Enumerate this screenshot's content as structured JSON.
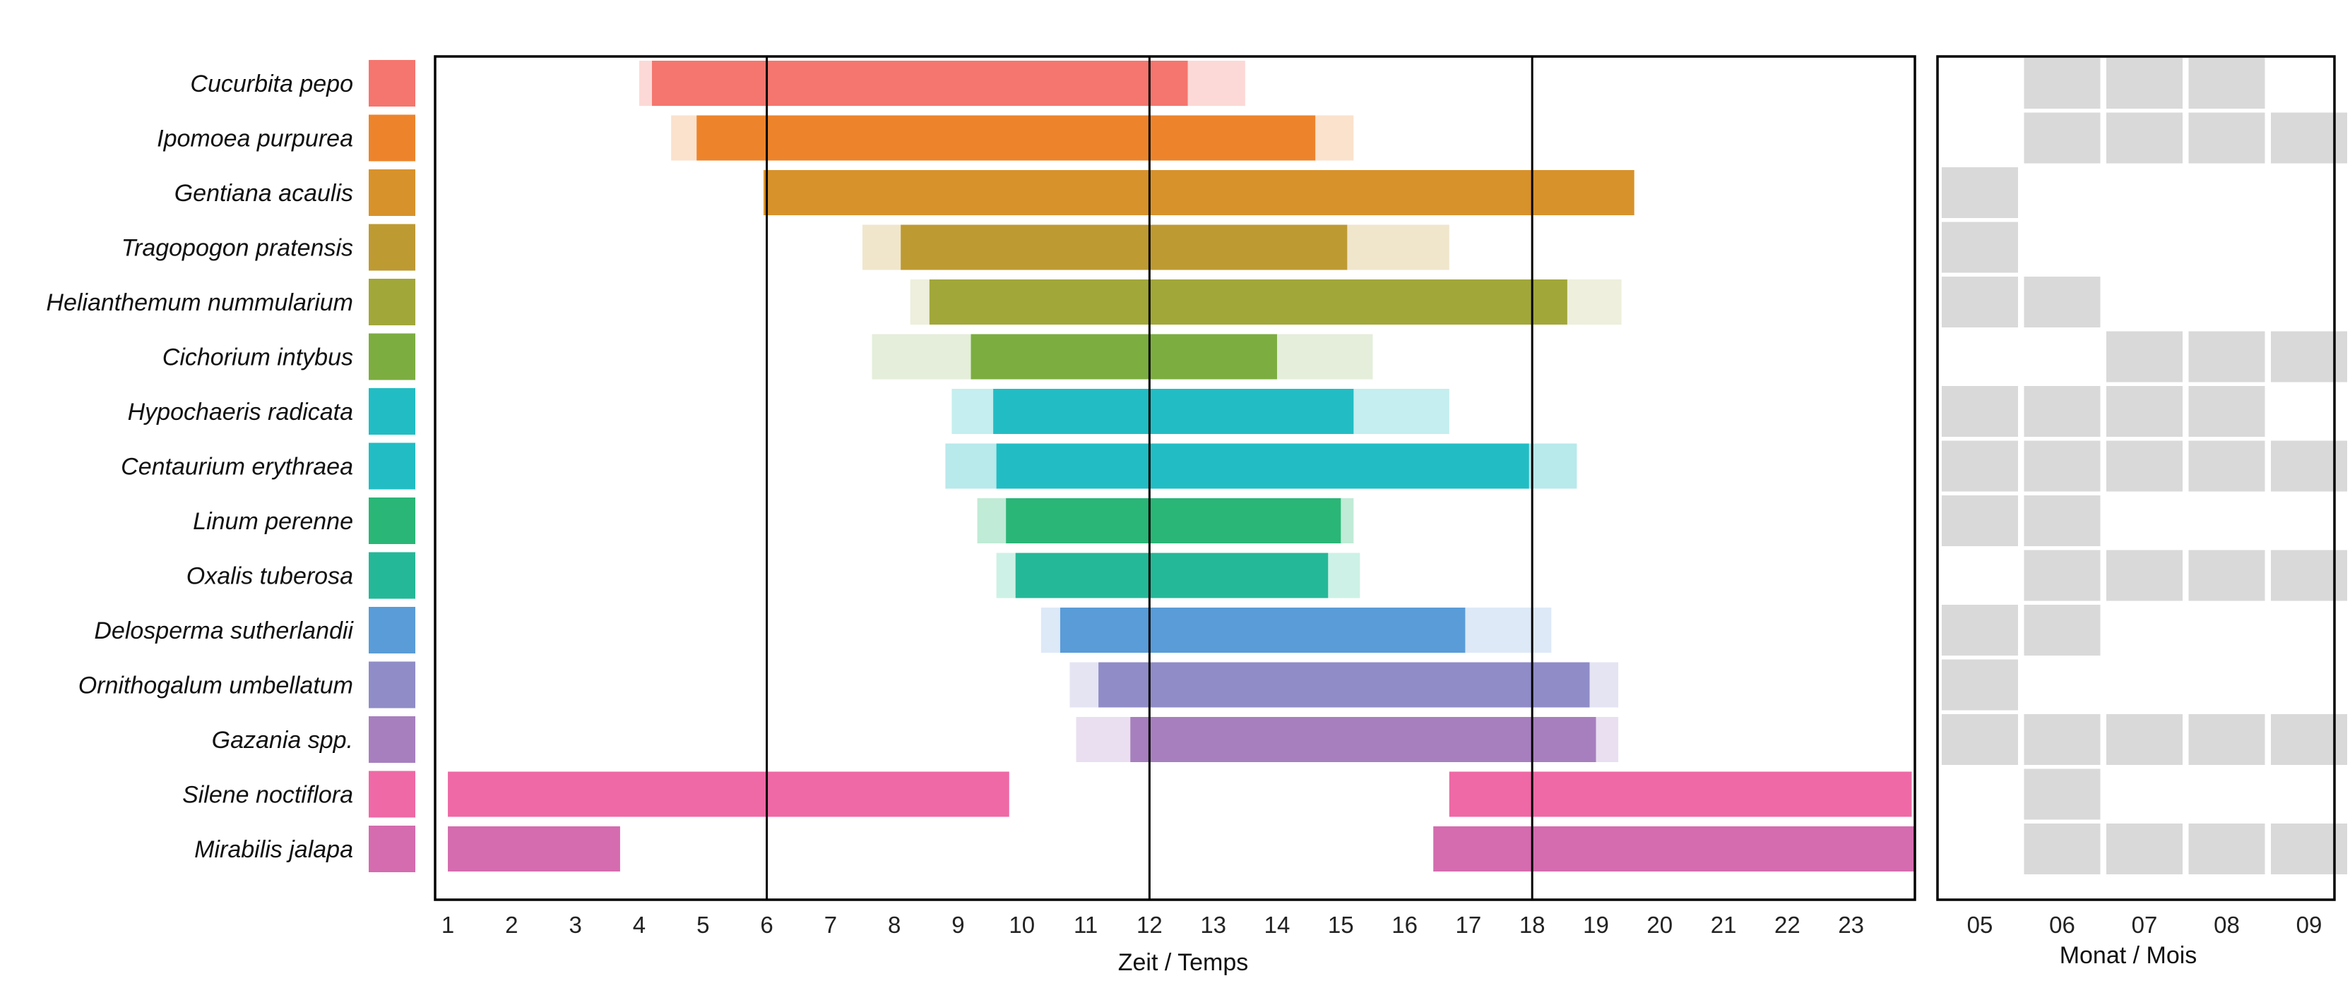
{
  "chart_data": {
    "type": "gantt",
    "xlabel": "Zeit / Temps",
    "xlim": [
      0.8,
      24
    ],
    "xticks": [
      1,
      2,
      3,
      4,
      5,
      6,
      7,
      8,
      9,
      10,
      11,
      12,
      13,
      14,
      15,
      16,
      17,
      18,
      19,
      20,
      21,
      22,
      23
    ],
    "reference_lines": [
      6,
      12,
      18
    ],
    "month_panel": {
      "xlabel": "Monat / Mois",
      "months": [
        "05",
        "06",
        "07",
        "08",
        "09"
      ]
    },
    "species": [
      {
        "name": "Cucurbita pepo",
        "color": "#F4766E",
        "light": "#FCD9D6",
        "bars": [
          {
            "light": [
              4.0,
              13.5
            ],
            "core": [
              4.2,
              12.6
            ]
          }
        ],
        "months": [
          0,
          1,
          1,
          1,
          0
        ]
      },
      {
        "name": "Ipomoea purpurea",
        "color": "#ED842C",
        "light": "#FBE2CC",
        "bars": [
          {
            "light": [
              4.5,
              15.2
            ],
            "core": [
              4.9,
              14.6
            ]
          }
        ],
        "months": [
          0,
          1,
          1,
          1,
          1
        ]
      },
      {
        "name": "Gentiana acaulis",
        "color": "#D8922B",
        "light": "#F5E2C4",
        "bars": [
          {
            "light": [
              5.95,
              19.6
            ],
            "core": [
              5.95,
              19.6
            ]
          }
        ],
        "months": [
          1,
          0,
          0,
          0,
          0
        ]
      },
      {
        "name": "Tragopogon pratensis",
        "color": "#BE9A33",
        "light": "#F0E6CC",
        "bars": [
          {
            "light": [
              7.5,
              16.7
            ],
            "core": [
              8.1,
              15.1
            ]
          }
        ],
        "months": [
          1,
          0,
          0,
          0,
          0
        ]
      },
      {
        "name": "Helianthemum nummularium",
        "color": "#A2A73A",
        "light": "#EEEFDC",
        "bars": [
          {
            "light": [
              8.25,
              19.4
            ],
            "core": [
              8.55,
              18.55
            ]
          }
        ],
        "months": [
          1,
          1,
          0,
          0,
          0
        ]
      },
      {
        "name": "Cichorium intybus",
        "color": "#7CAD41",
        "light": "#E4EEDA",
        "bars": [
          {
            "light": [
              7.65,
              15.5
            ],
            "core": [
              9.2,
              14.0
            ]
          }
        ],
        "months": [
          0,
          0,
          1,
          1,
          1
        ]
      },
      {
        "name": "Hypochaeris radicata",
        "color": "#22BDC4",
        "light": "#C4EEEF",
        "bars": [
          {
            "light": [
              8.9,
              16.7
            ],
            "core": [
              9.55,
              15.2
            ]
          }
        ],
        "months": [
          1,
          1,
          1,
          1,
          0
        ]
      },
      {
        "name": "Centaurium erythraea",
        "color": "#22BDC4",
        "light": "#B8E9EB",
        "bars": [
          {
            "light": [
              8.8,
              18.7
            ],
            "core": [
              9.6,
              17.95
            ]
          }
        ],
        "months": [
          1,
          1,
          1,
          1,
          1
        ]
      },
      {
        "name": "Linum perenne",
        "color": "#2AB677",
        "light": "#C0EBD6",
        "bars": [
          {
            "light": [
              9.3,
              15.2
            ],
            "core": [
              9.75,
              15.0
            ]
          }
        ],
        "months": [
          1,
          1,
          0,
          0,
          0
        ]
      },
      {
        "name": "Oxalis tuberosa",
        "color": "#25B898",
        "light": "#CDF1E6",
        "bars": [
          {
            "light": [
              9.6,
              15.3
            ],
            "core": [
              9.9,
              14.8
            ]
          }
        ],
        "months": [
          0,
          1,
          1,
          1,
          1
        ]
      },
      {
        "name": "Delosperma sutherlandii",
        "color": "#599CD8",
        "light": "#DDE9F7",
        "bars": [
          {
            "light": [
              10.3,
              18.3
            ],
            "core": [
              10.6,
              16.95
            ]
          }
        ],
        "months": [
          1,
          1,
          0,
          0,
          0
        ]
      },
      {
        "name": "Ornithogalum umbellatum",
        "color": "#908CC7",
        "light": "#E5E4F3",
        "bars": [
          {
            "light": [
              10.75,
              19.35
            ],
            "core": [
              11.2,
              18.9
            ]
          }
        ],
        "months": [
          1,
          0,
          0,
          0,
          0
        ]
      },
      {
        "name": "Gazania spp.",
        "color": "#A77FBE",
        "light": "#EADFF0",
        "bars": [
          {
            "light": [
              10.85,
              19.35
            ],
            "core": [
              11.7,
              19.0
            ]
          }
        ],
        "months": [
          1,
          1,
          1,
          1,
          1
        ]
      },
      {
        "name": "Silene noctiflora",
        "color": "#EE69A5",
        "light": "#FAD4E6",
        "bars": [
          {
            "light": [
              1.0,
              9.8
            ],
            "core": [
              1.0,
              9.8
            ]
          },
          {
            "light": [
              16.7,
              23.95
            ],
            "core": [
              16.7,
              23.95
            ]
          }
        ],
        "months": [
          0,
          1,
          0,
          0,
          0
        ]
      },
      {
        "name": "Mirabilis jalapa",
        "color": "#D46CAF",
        "light": "#F4D8EA",
        "bars": [
          {
            "light": [
              1.0,
              3.7
            ],
            "core": [
              1.0,
              3.7
            ]
          },
          {
            "light": [
              16.45,
              24.0
            ],
            "core": [
              16.45,
              24.0
            ]
          }
        ],
        "months": [
          0,
          1,
          1,
          1,
          1
        ]
      }
    ]
  }
}
